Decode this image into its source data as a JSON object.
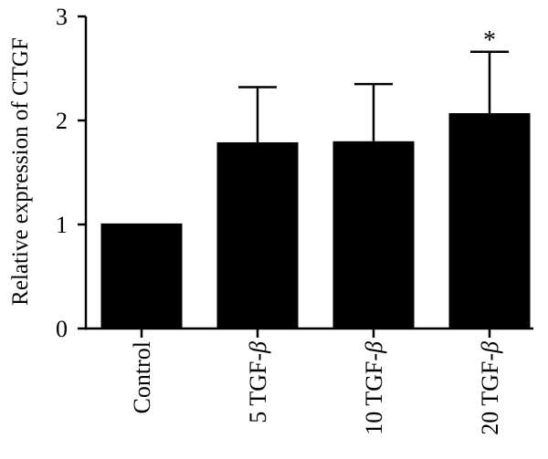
{
  "chart_data": {
    "type": "bar",
    "categories": [
      "Control",
      "5 TGF-",
      "10 TGF-",
      "20 TGF-"
    ],
    "category_suffix": "β",
    "values": [
      1.01,
      1.79,
      1.8,
      2.07
    ],
    "error_upper": [
      0,
      0.53,
      0.55,
      0.59
    ],
    "annotations": [
      "",
      "",
      "",
      "*"
    ],
    "ylabel": "Relative expression of CTGF",
    "ylim": [
      0,
      3
    ],
    "yticks": [
      0,
      1,
      2,
      3
    ],
    "ytick_labels": [
      "0",
      "1",
      "2",
      "3"
    ],
    "grid": false,
    "colors": {
      "bar": "#000000",
      "axis": "#000000",
      "background": "#ffffff"
    }
  }
}
